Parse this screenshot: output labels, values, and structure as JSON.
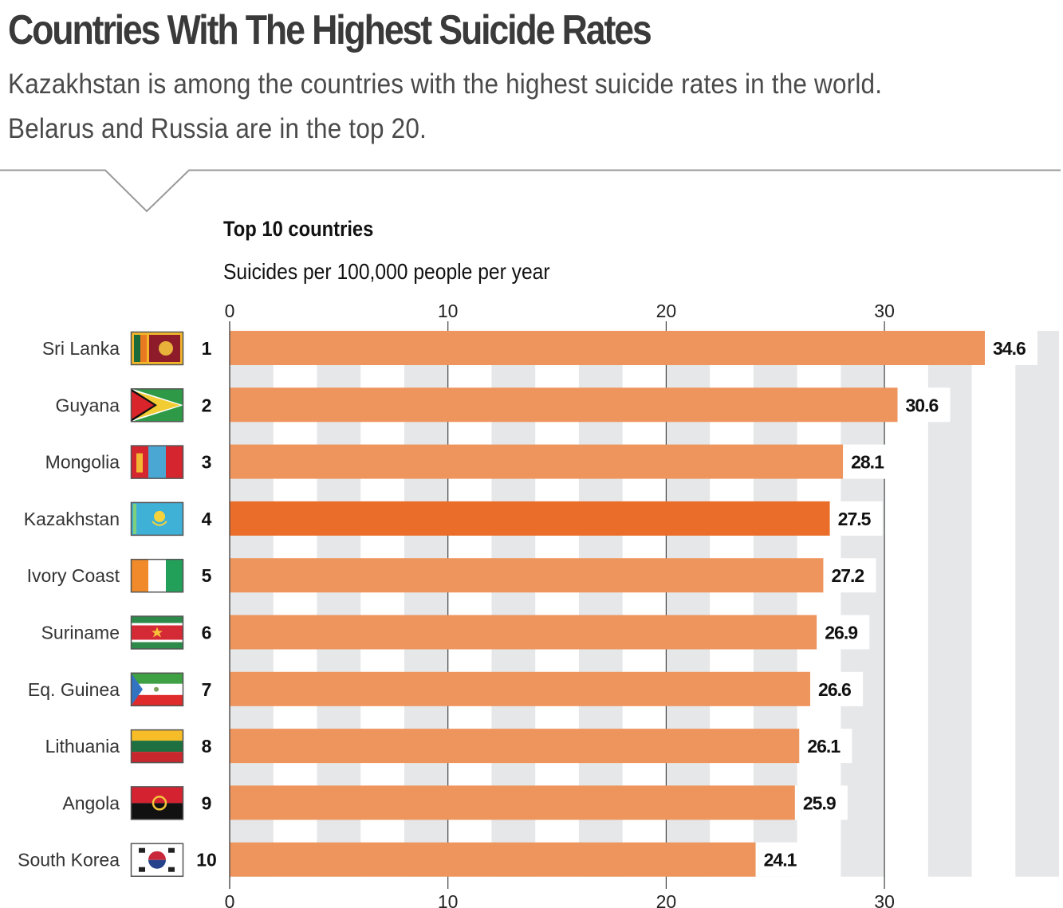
{
  "header": {
    "title": "Countries With The Highest Suicide Rates",
    "subtitle_line1": "Kazakhstan is among the countries with the highest suicide rates in the world.",
    "subtitle_line2": "Belarus and Russia are in the top 20."
  },
  "colors": {
    "bar": "#ee955e",
    "highlight_bar": "#ea6d2a",
    "stripe": "#e6e7e8",
    "divider": "#999999"
  },
  "chart_data": {
    "type": "bar",
    "orientation": "horizontal",
    "title": "Top 10 countries",
    "xlabel": "Suicides per 100,000 people per year",
    "ylabel": "",
    "xlim": [
      0,
      38
    ],
    "xticks": [
      0,
      10,
      20,
      30
    ],
    "grid": "alternating vertical bands every 2 units",
    "highlight": "Kazakhstan",
    "categories": [
      "Sri Lanka",
      "Guyana",
      "Mongolia",
      "Kazakhstan",
      "Ivory Coast",
      "Suriname",
      "Eq. Guinea",
      "Lithuania",
      "Angola",
      "South Korea"
    ],
    "ranks": [
      "1",
      "2",
      "3",
      "4",
      "5",
      "6",
      "7",
      "8",
      "9",
      "10"
    ],
    "flags": [
      "flag-sri-lanka-icon",
      "flag-guyana-icon",
      "flag-mongolia-icon",
      "flag-kazakhstan-icon",
      "flag-ivory-coast-icon",
      "flag-suriname-icon",
      "flag-eq-guinea-icon",
      "flag-lithuania-icon",
      "flag-angola-icon",
      "flag-south-korea-icon"
    ],
    "values": [
      34.6,
      30.6,
      28.1,
      27.5,
      27.2,
      26.9,
      26.6,
      26.1,
      25.9,
      24.1
    ],
    "value_labels": [
      "34.6",
      "30.6",
      "28.1",
      "27.5",
      "27.2",
      "26.9",
      "26.6",
      "26.1",
      "25.9",
      "24.1"
    ]
  }
}
